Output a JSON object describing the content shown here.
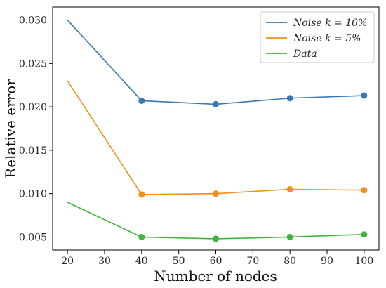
{
  "chart_data": {
    "type": "line",
    "xlabel": "Number of nodes",
    "ylabel": "Relative error",
    "x": [
      20,
      40,
      60,
      80,
      100
    ],
    "xlim": [
      16,
      104
    ],
    "ylim": [
      0.0035,
      0.0315
    ],
    "xticks": [
      "20",
      "30",
      "40",
      "50",
      "60",
      "70",
      "80",
      "90",
      "100"
    ],
    "xtick_values": [
      20,
      30,
      40,
      50,
      60,
      70,
      80,
      90,
      100
    ],
    "yticks": [
      "0.005",
      "0.010",
      "0.015",
      "0.020",
      "0.025",
      "0.030"
    ],
    "ytick_values": [
      0.005,
      0.01,
      0.015,
      0.02,
      0.025,
      0.03
    ],
    "grid": false,
    "legend_position": "top-right",
    "markers_on": [
      40,
      60,
      80,
      100
    ],
    "series": [
      {
        "name": "Noise k = 10%",
        "color": "#3a78b4",
        "values": [
          0.03,
          0.0207,
          0.0203,
          0.021,
          0.0213
        ]
      },
      {
        "name": "Noise k = 5%",
        "color": "#f28e1c",
        "values": [
          0.023,
          0.0099,
          0.01,
          0.0105,
          0.0104
        ]
      },
      {
        "name": "Data",
        "color": "#3db43a",
        "values": [
          0.009,
          0.005,
          0.0048,
          0.005,
          0.0053
        ]
      }
    ]
  }
}
